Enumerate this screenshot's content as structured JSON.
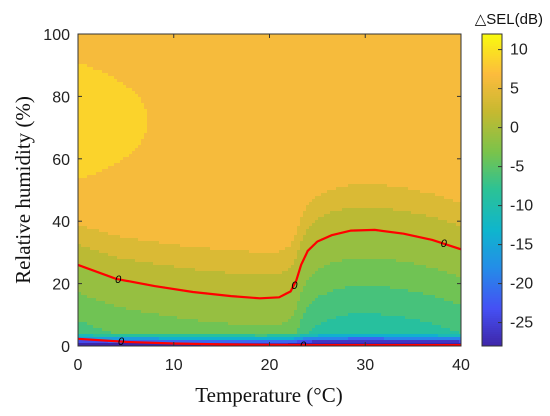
{
  "chart_data": {
    "type": "heatmap",
    "title": "",
    "xlabel": "Temperature (°C)",
    "ylabel": "Relative humidity (%)",
    "xlim": [
      0,
      40
    ],
    "ylim": [
      0,
      100
    ],
    "x_ticks": [
      "0",
      "10",
      "20",
      "30",
      "40"
    ],
    "y_ticks": [
      "0",
      "20",
      "40",
      "60",
      "80",
      "100"
    ],
    "colorbar": {
      "title": "△SEL(dB)",
      "range": [
        -28,
        12
      ],
      "ticks": [
        "10",
        "5",
        "0",
        "-5",
        "-10",
        "-15",
        "-20",
        "-25"
      ],
      "colormap": "parula"
    },
    "contour_level_label": "0",
    "zero_contours": [
      {
        "points": [
          [
            0,
            26
          ],
          [
            4,
            21.5
          ],
          [
            8,
            19.2
          ],
          [
            12,
            17.3
          ],
          [
            16,
            16.0
          ],
          [
            19,
            15.3
          ],
          [
            21,
            15.6
          ],
          [
            22.2,
            17.5
          ],
          [
            22.8,
            21
          ],
          [
            23.3,
            26
          ],
          [
            24,
            30.5
          ],
          [
            25,
            33.5
          ],
          [
            26.5,
            35.5
          ],
          [
            28.5,
            37
          ],
          [
            31,
            37.2
          ],
          [
            34,
            36
          ],
          [
            37,
            34
          ],
          [
            40,
            31
          ]
        ],
        "label_positions": [
          [
            4.2,
            21.5
          ],
          [
            22.6,
            19.5
          ],
          [
            38.2,
            33
          ]
        ]
      },
      {
        "points": [
          [
            0,
            2.3
          ],
          [
            5,
            1.3
          ],
          [
            10,
            0.8
          ],
          [
            15,
            0.5
          ],
          [
            20,
            0.4
          ],
          [
            25,
            0.3
          ],
          [
            30,
            0.3
          ],
          [
            35,
            0.3
          ],
          [
            40,
            0.3
          ]
        ],
        "label_positions": [
          [
            4.5,
            1.6
          ],
          [
            23.5,
            0.4
          ]
        ]
      }
    ],
    "field_description_values": {
      "top_left_region": 8,
      "upper_region": 5,
      "middle_band": 2,
      "zero_contour": 0,
      "below_contour": -3,
      "near_zero_humidity": -25
    },
    "colors": {
      "contour": "#ff0000",
      "high": "#f9fb0e",
      "mid": "#7bc34f",
      "low": "#3e26a8"
    }
  }
}
